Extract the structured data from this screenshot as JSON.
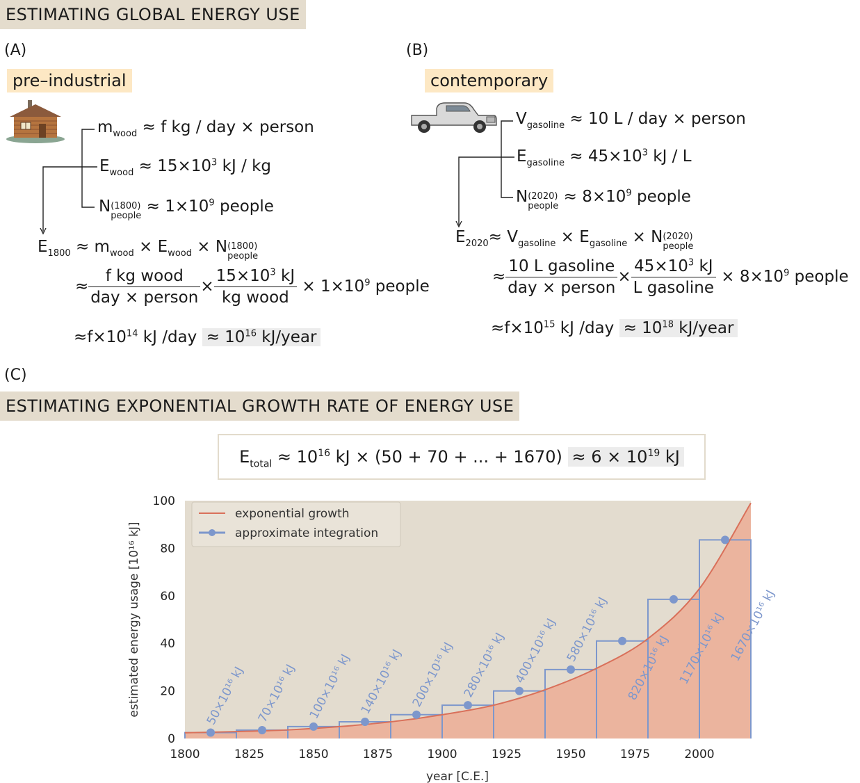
{
  "banner_a": "ESTIMATING GLOBAL ENERGY USE",
  "panel_a": {
    "label": "(A)",
    "tag": "pre–industrial",
    "m_sym": "m",
    "m_sub": "wood",
    "m_val": " ≈ f kg / day × person",
    "e_sym": "E",
    "e_sub": "wood",
    "e_val": " ≈ 15×10",
    "e_exp": "3",
    "e_unit": " kJ / kg",
    "n_sym": "N",
    "n_sup": "(1800)",
    "n_sub": "people",
    "n_val": " ≈ 1×10",
    "n_exp": "9",
    "n_unit": " people",
    "r_lhs": "E",
    "r_lhs_sub": "1800",
    "r_a": " ≈ m",
    "r_a_sub": "wood",
    "r_b": " × E",
    "r_b_sub": "wood",
    "r_c": " × N",
    "r_c_sup": "(1800)",
    "r_c_sub": "people",
    "approx": "≈",
    "f1_num": "f kg wood",
    "f1_den": "day × person",
    "times": "×",
    "f2_num_a": "15×10",
    "f2_num_exp": "3",
    "f2_num_b": " kJ",
    "f2_den": "kg wood",
    "tail_a": " × 1×10",
    "tail_exp": "9",
    "tail_b": " people",
    "res_a": "≈f×10",
    "res_exp": "14",
    "res_b": " kJ /day ",
    "res_hl_a": "≈ 10",
    "res_hl_exp": "16",
    "res_hl_b": " kJ/year"
  },
  "panel_b": {
    "label": "(B)",
    "tag": "contemporary",
    "v_sym": "V",
    "v_sub": "gasoline",
    "v_val": " ≈ 10 L / day × person",
    "e_sym": "E",
    "e_sub": "gasoline",
    "e_val": " ≈ 45×10",
    "e_exp": "3",
    "e_unit": " kJ / L",
    "n_sym": "N",
    "n_sup": "(2020)",
    "n_sub": "people",
    "n_val": " ≈ 8×10",
    "n_exp": "9",
    "n_unit": " people",
    "r_lhs": "E",
    "r_lhs_sub": "2020",
    "r_a": "≈ V",
    "r_a_sub": "gasoline",
    "r_b": " × E",
    "r_b_sub": "gasoline",
    "r_c": " × N",
    "r_c_sup": "(2020)",
    "r_c_sub": "people",
    "approx": "≈",
    "f1_num": "10 L gasoline",
    "f1_den": "day × person",
    "times": "×",
    "f2_num_a": "45×10",
    "f2_num_exp": "3",
    "f2_num_b": " kJ",
    "f2_den": "L gasoline",
    "tail_a": " × 8×10",
    "tail_exp": "9",
    "tail_b": " people",
    "res_a": "≈f×10",
    "res_exp": "15",
    "res_b": " kJ /day ",
    "res_hl_a": "≈ 10",
    "res_hl_exp": "18",
    "res_hl_b": " kJ/year"
  },
  "panel_c": {
    "label": "(C)",
    "banner": "ESTIMATING EXPONENTIAL GROWTH RATE OF ENERGY USE",
    "f_sym": "E",
    "f_sub": "total",
    "f_a": " ≈ 10",
    "f_exp": "16",
    "f_b": " kJ × (50 + 70 + ... + 1670) ",
    "f_hl_a": "≈ 6 × 10",
    "f_hl_exp": "19",
    "f_hl_b": "  kJ"
  },
  "chart_data": {
    "type": "line",
    "xlabel": "year [C.E.]",
    "ylabel": "estimated energy usage [10¹⁶ kJ]",
    "xlim": [
      1800,
      2020
    ],
    "ylim": [
      0,
      100
    ],
    "x_ticks": [
      1800,
      1825,
      1850,
      1875,
      1900,
      1925,
      1950,
      1975,
      2000
    ],
    "y_ticks": [
      0,
      20,
      40,
      60,
      80,
      100
    ],
    "legend_position": "top-left",
    "colors": {
      "curve": "#d9705a",
      "fill": "#ebb49e",
      "steps": "#7d97cc",
      "background": "#e3dccf"
    },
    "series": [
      {
        "name": "exponential growth",
        "x": [
          1800,
          1820,
          1840,
          1860,
          1880,
          1900,
          1920,
          1940,
          1960,
          1980,
          2000,
          2020
        ],
        "y": [
          2.4,
          2.9,
          3.6,
          5.0,
          7.0,
          10.0,
          14.0,
          20.5,
          29.5,
          42.0,
          63.0,
          99.0
        ]
      },
      {
        "name": "approximate integration",
        "x": [
          1810,
          1830,
          1850,
          1870,
          1890,
          1910,
          1930,
          1950,
          1970,
          1990,
          2010
        ],
        "y": [
          2.5,
          3.5,
          5.0,
          7.0,
          10.0,
          14.0,
          20.0,
          29.0,
          41.0,
          58.5,
          83.5
        ]
      }
    ],
    "bin_width": 20,
    "bar_labels": [
      "50×10¹⁶ kJ",
      "70×10¹⁶ kJ",
      "100×10¹⁶ kJ",
      "140×10¹⁶ kJ",
      "200×10¹⁶ kJ",
      "280×10¹⁶ kJ",
      "400×10¹⁶ kJ",
      "580×10¹⁶ kJ",
      "820×10¹⁶ kJ",
      "1170×10¹⁶ kJ",
      "1670×10¹⁶ kJ"
    ]
  }
}
